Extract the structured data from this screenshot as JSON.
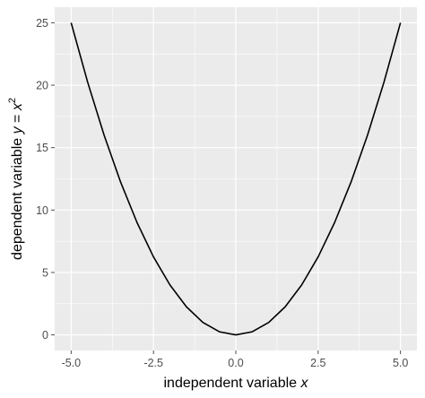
{
  "chart_data": {
    "type": "line",
    "xlabel": {
      "prefix": "independent variable ",
      "var": "x"
    },
    "ylabel": {
      "prefix": "dependent variable ",
      "var": "y",
      "eq": " = ",
      "base": "x",
      "exp": "2"
    },
    "xlim": [
      -5.5,
      5.5
    ],
    "ylim": [
      -1.25,
      26.25
    ],
    "x_ticks": [
      -5.0,
      -2.5,
      0.0,
      2.5,
      5.0
    ],
    "x_tick_labels": [
      "-5.0",
      "-2.5",
      "0.0",
      "2.5",
      "5.0"
    ],
    "y_ticks": [
      0,
      5,
      10,
      15,
      20,
      25
    ],
    "y_tick_labels": [
      "0",
      "5",
      "10",
      "15",
      "20",
      "25"
    ],
    "grid": true,
    "series": [
      {
        "x": [
          -5.0,
          -4.5,
          -4.0,
          -3.5,
          -3.0,
          -2.5,
          -2.0,
          -1.5,
          -1.0,
          -0.5,
          0.0,
          0.5,
          1.0,
          1.5,
          2.0,
          2.5,
          3.0,
          3.5,
          4.0,
          4.5,
          5.0
        ],
        "y": [
          25,
          20.25,
          16,
          12.25,
          9,
          6.25,
          4,
          2.25,
          1,
          0.25,
          0,
          0.25,
          1,
          2.25,
          4,
          6.25,
          9,
          12.25,
          16,
          20.25,
          25
        ]
      }
    ],
    "colors": {
      "panel": "#ebebeb",
      "grid": "#ffffff",
      "line": "#000000",
      "tick": "#4d4d4d"
    }
  }
}
